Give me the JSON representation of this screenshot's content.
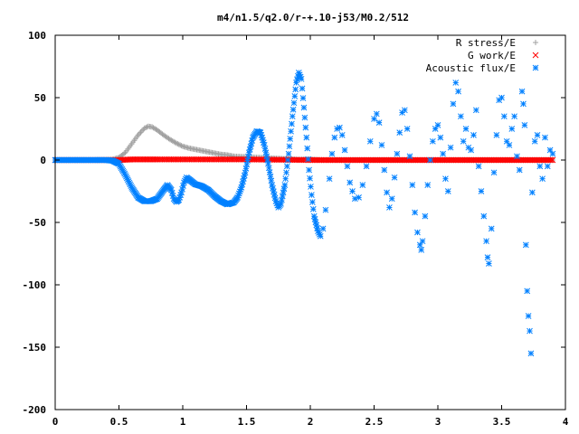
{
  "chart_data": {
    "type": "scatter",
    "title": "m4/n1.5/q2.0/r-+.10-j53/M0.2/512",
    "xlabel": "",
    "ylabel": "",
    "xlim": [
      0,
      4
    ],
    "ylim": [
      -200,
      100
    ],
    "xticks": [
      0,
      0.5,
      1,
      1.5,
      2,
      2.5,
      3,
      3.5,
      4
    ],
    "xtick_labels": [
      "0",
      "0.5",
      "1",
      "1.5",
      "2",
      "2.5",
      "3",
      "3.5",
      "4"
    ],
    "yticks": [
      -200,
      -150,
      -100,
      -50,
      0,
      50,
      100
    ],
    "ytick_labels": [
      "-200",
      "-150",
      "-100",
      "-50",
      "0",
      "50",
      "100"
    ],
    "grid": false,
    "legend_position": "top-right",
    "series": [
      {
        "name": "R stress/E",
        "marker": "+",
        "color": "#a0a0a0",
        "points": [
          [
            0.0,
            0
          ],
          [
            0.3,
            0
          ],
          [
            0.45,
            0.5
          ],
          [
            0.5,
            2
          ],
          [
            0.55,
            6
          ],
          [
            0.6,
            13
          ],
          [
            0.65,
            20
          ],
          [
            0.7,
            25.5
          ],
          [
            0.73,
            27
          ],
          [
            0.76,
            26.5
          ],
          [
            0.8,
            24
          ],
          [
            0.85,
            20
          ],
          [
            0.9,
            16.5
          ],
          [
            0.95,
            13.5
          ],
          [
            1.0,
            11
          ],
          [
            1.05,
            9.5
          ],
          [
            1.1,
            8.5
          ],
          [
            1.15,
            7.5
          ],
          [
            1.2,
            6.5
          ],
          [
            1.25,
            5.5
          ],
          [
            1.3,
            4.5
          ],
          [
            1.35,
            4
          ],
          [
            1.4,
            3
          ],
          [
            1.5,
            2.5
          ],
          [
            1.6,
            2
          ],
          [
            1.7,
            1.5
          ],
          [
            1.8,
            1
          ],
          [
            1.9,
            0.5
          ],
          [
            2.0,
            0.5
          ],
          [
            2.1,
            0
          ],
          [
            2.5,
            0
          ],
          [
            3.0,
            0
          ],
          [
            3.5,
            0
          ],
          [
            3.9,
            0
          ]
        ]
      },
      {
        "name": "G work/E",
        "marker": "x",
        "color": "#ff0000",
        "points": [
          [
            0.0,
            0
          ],
          [
            0.3,
            0
          ],
          [
            0.5,
            0
          ],
          [
            0.6,
            0.5
          ],
          [
            0.7,
            0.5
          ],
          [
            0.8,
            0.5
          ],
          [
            1.0,
            0.5
          ],
          [
            1.5,
            0.5
          ],
          [
            2.0,
            0
          ],
          [
            2.5,
            0
          ],
          [
            3.0,
            0
          ],
          [
            3.5,
            0
          ],
          [
            3.9,
            0
          ]
        ]
      },
      {
        "name": "Acoustic flux/E",
        "marker": "*",
        "color": "#0080ff",
        "points": [
          [
            0.0,
            0
          ],
          [
            0.1,
            0
          ],
          [
            0.2,
            0
          ],
          [
            0.3,
            0
          ],
          [
            0.4,
            0
          ],
          [
            0.45,
            -0.5
          ],
          [
            0.5,
            -3
          ],
          [
            0.55,
            -12
          ],
          [
            0.6,
            -22
          ],
          [
            0.65,
            -30
          ],
          [
            0.7,
            -33
          ],
          [
            0.75,
            -33
          ],
          [
            0.8,
            -31
          ],
          [
            0.85,
            -24
          ],
          [
            0.88,
            -20
          ],
          [
            0.91,
            -24
          ],
          [
            0.93,
            -31
          ],
          [
            0.95,
            -33.5
          ],
          [
            0.97,
            -32
          ],
          [
            0.99,
            -26
          ],
          [
            1.01,
            -18
          ],
          [
            1.03,
            -14
          ],
          [
            1.05,
            -15.5
          ],
          [
            1.08,
            -18
          ],
          [
            1.1,
            -19.5
          ],
          [
            1.12,
            -20
          ],
          [
            1.15,
            -21
          ],
          [
            1.2,
            -24
          ],
          [
            1.25,
            -29
          ],
          [
            1.3,
            -33
          ],
          [
            1.35,
            -35.5
          ],
          [
            1.4,
            -34
          ],
          [
            1.43,
            -30
          ],
          [
            1.46,
            -22
          ],
          [
            1.49,
            -10
          ],
          [
            1.52,
            6
          ],
          [
            1.55,
            18
          ],
          [
            1.58,
            23
          ],
          [
            1.61,
            22
          ],
          [
            1.64,
            12
          ],
          [
            1.67,
            -3
          ],
          [
            1.7,
            -20
          ],
          [
            1.73,
            -33
          ],
          [
            1.75,
            -38
          ],
          [
            1.77,
            -35
          ],
          [
            1.8,
            -20
          ],
          [
            1.83,
            5
          ],
          [
            1.86,
            35
          ],
          [
            1.89,
            62
          ],
          [
            1.91,
            70
          ],
          [
            1.93,
            65
          ],
          [
            1.95,
            42
          ],
          [
            1.97,
            18
          ],
          [
            1.99,
            -8
          ],
          [
            2.01,
            -28
          ],
          [
            2.03,
            -45
          ],
          [
            2.06,
            -57
          ],
          [
            2.08,
            -61
          ],
          [
            2.1,
            -55
          ],
          [
            2.12,
            -40
          ],
          [
            2.15,
            -15
          ],
          [
            2.17,
            5
          ],
          [
            2.19,
            18
          ],
          [
            2.21,
            25
          ],
          [
            2.23,
            26
          ],
          [
            2.25,
            20
          ],
          [
            2.27,
            8
          ],
          [
            2.29,
            -5
          ],
          [
            2.31,
            -18
          ],
          [
            2.33,
            -25
          ],
          [
            2.35,
            -31
          ],
          [
            2.38,
            -30
          ],
          [
            2.41,
            -20
          ],
          [
            2.44,
            -5
          ],
          [
            2.47,
            15
          ],
          [
            2.5,
            33
          ],
          [
            2.52,
            37
          ],
          [
            2.54,
            30
          ],
          [
            2.56,
            12
          ],
          [
            2.58,
            -8
          ],
          [
            2.6,
            -26
          ],
          [
            2.62,
            -38
          ],
          [
            2.64,
            -31
          ],
          [
            2.66,
            -14
          ],
          [
            2.68,
            5
          ],
          [
            2.7,
            22
          ],
          [
            2.72,
            38
          ],
          [
            2.74,
            40
          ],
          [
            2.76,
            25
          ],
          [
            2.78,
            3
          ],
          [
            2.8,
            -20
          ],
          [
            2.82,
            -42
          ],
          [
            2.84,
            -58
          ],
          [
            2.86,
            -68
          ],
          [
            2.87,
            -72
          ],
          [
            2.88,
            -65
          ],
          [
            2.9,
            -45
          ],
          [
            2.92,
            -20
          ],
          [
            2.94,
            0
          ],
          [
            2.96,
            15
          ],
          [
            2.98,
            25
          ],
          [
            3.0,
            28
          ],
          [
            3.02,
            18
          ],
          [
            3.04,
            5
          ],
          [
            3.06,
            -15
          ],
          [
            3.08,
            -25
          ],
          [
            3.1,
            10
          ],
          [
            3.12,
            45
          ],
          [
            3.14,
            62
          ],
          [
            3.16,
            55
          ],
          [
            3.18,
            35
          ],
          [
            3.2,
            15
          ],
          [
            3.22,
            25
          ],
          [
            3.24,
            10
          ],
          [
            3.26,
            8
          ],
          [
            3.28,
            20
          ],
          [
            3.3,
            40
          ],
          [
            3.32,
            -5
          ],
          [
            3.34,
            -25
          ],
          [
            3.36,
            -45
          ],
          [
            3.38,
            -65
          ],
          [
            3.39,
            -78
          ],
          [
            3.4,
            -83
          ],
          [
            3.42,
            -55
          ],
          [
            3.44,
            -10
          ],
          [
            3.46,
            20
          ],
          [
            3.48,
            48
          ],
          [
            3.5,
            50
          ],
          [
            3.52,
            35
          ],
          [
            3.54,
            15
          ],
          [
            3.56,
            12
          ],
          [
            3.58,
            25
          ],
          [
            3.6,
            35
          ],
          [
            3.62,
            3
          ],
          [
            3.64,
            -8
          ],
          [
            3.66,
            55
          ],
          [
            3.67,
            45
          ],
          [
            3.68,
            28
          ],
          [
            3.69,
            -68
          ],
          [
            3.7,
            -105
          ],
          [
            3.71,
            -125
          ],
          [
            3.72,
            -137
          ],
          [
            3.73,
            -155
          ],
          [
            3.74,
            -26
          ],
          [
            3.76,
            15
          ],
          [
            3.78,
            20
          ],
          [
            3.8,
            -5
          ],
          [
            3.82,
            -15
          ],
          [
            3.84,
            18
          ],
          [
            3.86,
            -5
          ],
          [
            3.88,
            8
          ],
          [
            3.9,
            5
          ]
        ]
      }
    ]
  }
}
